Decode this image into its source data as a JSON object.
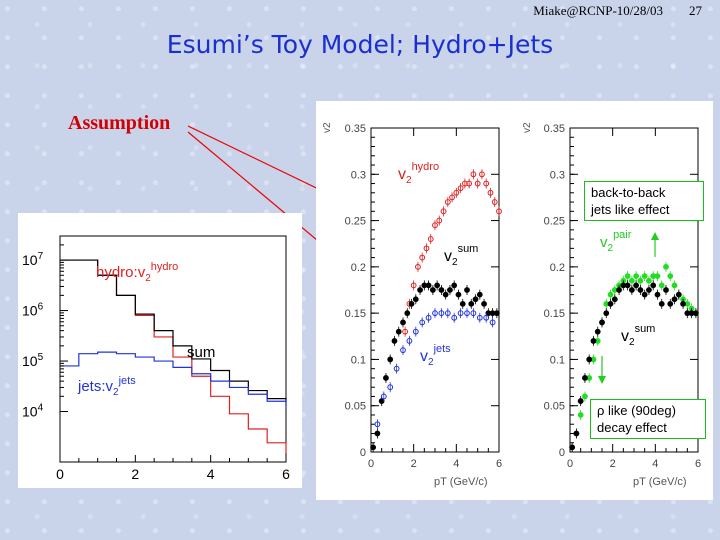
{
  "header": {
    "author_date": "Miake@RCNP-10/28/03",
    "page_number": "27"
  },
  "title": "Esumi’s Toy Model; Hydro+Jets",
  "assumption_label": "Assumption",
  "colors": {
    "title": "#1a2fd0",
    "assumption": "#d40000",
    "hydro": "#e02020",
    "jets": "#2233dd",
    "sum": "#000000",
    "pair": "#22dd22",
    "callout_border": "#1bbf1b",
    "arrow": "#ee0000"
  },
  "left_plot": {
    "labels": {
      "hydro": "hydro:v",
      "hydro_sub": "2",
      "hydro_sup": "hydro",
      "sum": "sum",
      "jets": "jets:v",
      "jets_sub": "2",
      "jets_sup": "jets"
    },
    "x_ticks": [
      "0",
      "2",
      "4",
      "6"
    ],
    "y_ticks": [
      {
        "base": "10",
        "exp": "4"
      },
      {
        "base": "10",
        "exp": "5"
      },
      {
        "base": "10",
        "exp": "6"
      },
      {
        "base": "10",
        "exp": "7"
      }
    ]
  },
  "mid_plot": {
    "y_axis_label": "v2",
    "x_axis_label": "pT (GeV/c)",
    "labels": {
      "hydro": "v",
      "hydro_sub": "2",
      "hydro_sup": "hydro",
      "sum": "v",
      "sum_sub": "2",
      "sum_sup": "sum",
      "jets": "v",
      "jets_sub": "2",
      "jets_sup": "jets"
    }
  },
  "right_plot": {
    "y_axis_label": "v2",
    "x_axis_label": "pT (GeV/c)",
    "labels": {
      "pair": "v",
      "pair_sub": "2",
      "pair_sup": "pair",
      "sum": "v",
      "sum_sub": "2",
      "sum_sup": "sum"
    },
    "callout_top": [
      "back-to-back",
      "jets like effect"
    ],
    "callout_bottom": [
      "ρ like (90deg)",
      "decay effect"
    ]
  },
  "chart_data": [
    {
      "type": "line",
      "log_y": true,
      "x_ticks": [
        0,
        2,
        4,
        6
      ],
      "xlim": [
        0,
        6
      ],
      "ylim": [
        1000,
        30000000
      ],
      "series": [
        {
          "name": "hydro:v2hydro",
          "color": "#e02020",
          "x": [
            0,
            0.5,
            1,
            1.5,
            2,
            2.5,
            3,
            3.5,
            4,
            4.5,
            5,
            5.5,
            6
          ],
          "y": [
            10000000,
            10000000,
            5000000,
            2000000,
            800000,
            300000,
            120000,
            50000,
            20000,
            9000,
            4500,
            2400,
            1500
          ]
        },
        {
          "name": "sum",
          "color": "#000000",
          "x": [
            0,
            0.5,
            1,
            1.5,
            2,
            2.5,
            3,
            3.5,
            4,
            4.5,
            5,
            5.5,
            6
          ],
          "y": [
            10000000,
            10000000,
            5000000,
            2000000,
            850000,
            400000,
            200000,
            110000,
            65000,
            40000,
            26000,
            18000,
            13000
          ]
        },
        {
          "name": "jets:v2jets",
          "color": "#2233dd",
          "x": [
            0,
            0.5,
            1,
            1.5,
            2,
            2.5,
            3,
            3.5,
            4,
            4.5,
            5,
            5.5,
            6
          ],
          "y": [
            80000,
            140000,
            150000,
            140000,
            120000,
            100000,
            75000,
            56000,
            40000,
            30000,
            22000,
            16000,
            12000
          ]
        }
      ]
    },
    {
      "type": "scatter",
      "xlabel": "pT (GeV/c)",
      "ylabel": "v2",
      "xlim": [
        0,
        6
      ],
      "ylim": [
        0,
        0.35
      ],
      "x_ticks": [
        0,
        2,
        4,
        6
      ],
      "y_ticks": [
        0,
        0.05,
        0.1,
        0.15,
        0.2,
        0.25,
        0.3,
        0.35
      ],
      "series": [
        {
          "name": "v2hydro",
          "color": "#e02020",
          "x": [
            1.6,
            1.8,
            2.0,
            2.2,
            2.4,
            2.6,
            2.8,
            3.0,
            3.2,
            3.4,
            3.6,
            3.8,
            4.0,
            4.2,
            4.4,
            4.6,
            4.8,
            5.0,
            5.2,
            5.4,
            5.6,
            5.8,
            6.0
          ],
          "y": [
            0.13,
            0.16,
            0.18,
            0.2,
            0.21,
            0.22,
            0.23,
            0.245,
            0.25,
            0.26,
            0.27,
            0.275,
            0.28,
            0.285,
            0.29,
            0.29,
            0.3,
            0.29,
            0.3,
            0.29,
            0.28,
            0.27,
            0.26
          ]
        },
        {
          "name": "v2sum",
          "color": "#000000",
          "x": [
            0.1,
            0.3,
            0.5,
            0.7,
            0.9,
            1.1,
            1.3,
            1.5,
            1.7,
            1.9,
            2.1,
            2.3,
            2.5,
            2.7,
            2.9,
            3.1,
            3.3,
            3.5,
            3.7,
            3.9,
            4.1,
            4.3,
            4.5,
            4.7,
            4.9,
            5.1,
            5.3,
            5.5,
            5.7,
            5.9
          ],
          "y": [
            0.005,
            0.02,
            0.055,
            0.08,
            0.1,
            0.12,
            0.13,
            0.14,
            0.15,
            0.16,
            0.165,
            0.175,
            0.18,
            0.18,
            0.175,
            0.18,
            0.175,
            0.17,
            0.175,
            0.18,
            0.17,
            0.16,
            0.175,
            0.16,
            0.165,
            0.17,
            0.16,
            0.15,
            0.15,
            0.15
          ]
        },
        {
          "name": "v2jets",
          "color": "#2233dd",
          "x": [
            0.3,
            0.6,
            0.9,
            1.2,
            1.5,
            1.8,
            2.1,
            2.4,
            2.7,
            3.0,
            3.3,
            3.6,
            3.9,
            4.2,
            4.5,
            4.8,
            5.1,
            5.4,
            5.7
          ],
          "y": [
            0.03,
            0.06,
            0.07,
            0.09,
            0.11,
            0.12,
            0.13,
            0.14,
            0.145,
            0.15,
            0.15,
            0.15,
            0.145,
            0.15,
            0.15,
            0.15,
            0.145,
            0.145,
            0.14
          ]
        }
      ]
    },
    {
      "type": "scatter",
      "xlabel": "pT (GeV/c)",
      "ylabel": "v2",
      "xlim": [
        0,
        6
      ],
      "ylim": [
        0,
        0.35
      ],
      "x_ticks": [
        0,
        2,
        4,
        6
      ],
      "y_ticks": [
        0,
        0.05,
        0.1,
        0.15,
        0.2,
        0.25,
        0.3,
        0.35
      ],
      "series": [
        {
          "name": "v2pair",
          "color": "#22dd22",
          "x": [
            0.1,
            0.3,
            0.5,
            0.7,
            0.9,
            1.1,
            1.3,
            1.5,
            1.7,
            1.9,
            2.1,
            2.3,
            2.5,
            2.7,
            2.9,
            3.1,
            3.3,
            3.5,
            3.7,
            3.9,
            4.1,
            4.3,
            4.5,
            4.7,
            4.9,
            5.1,
            5.3,
            5.5,
            5.7,
            5.9
          ],
          "y": [
            0.005,
            0.02,
            0.04,
            0.06,
            0.08,
            0.1,
            0.12,
            0.14,
            0.16,
            0.17,
            0.175,
            0.18,
            0.185,
            0.19,
            0.185,
            0.19,
            0.185,
            0.19,
            0.185,
            0.19,
            0.19,
            0.18,
            0.2,
            0.19,
            0.18,
            0.17,
            0.165,
            0.16,
            0.155,
            0.15
          ]
        },
        {
          "name": "v2sum",
          "color": "#000000",
          "x": [
            0.1,
            0.3,
            0.5,
            0.7,
            0.9,
            1.1,
            1.3,
            1.5,
            1.7,
            1.9,
            2.1,
            2.3,
            2.5,
            2.7,
            2.9,
            3.1,
            3.3,
            3.5,
            3.7,
            3.9,
            4.1,
            4.3,
            4.5,
            4.7,
            4.9,
            5.1,
            5.3,
            5.5,
            5.7,
            5.9
          ],
          "y": [
            0.005,
            0.02,
            0.055,
            0.08,
            0.1,
            0.12,
            0.13,
            0.14,
            0.15,
            0.16,
            0.165,
            0.175,
            0.18,
            0.18,
            0.175,
            0.18,
            0.175,
            0.17,
            0.175,
            0.18,
            0.17,
            0.16,
            0.175,
            0.16,
            0.165,
            0.17,
            0.16,
            0.15,
            0.15,
            0.15
          ]
        }
      ]
    }
  ]
}
